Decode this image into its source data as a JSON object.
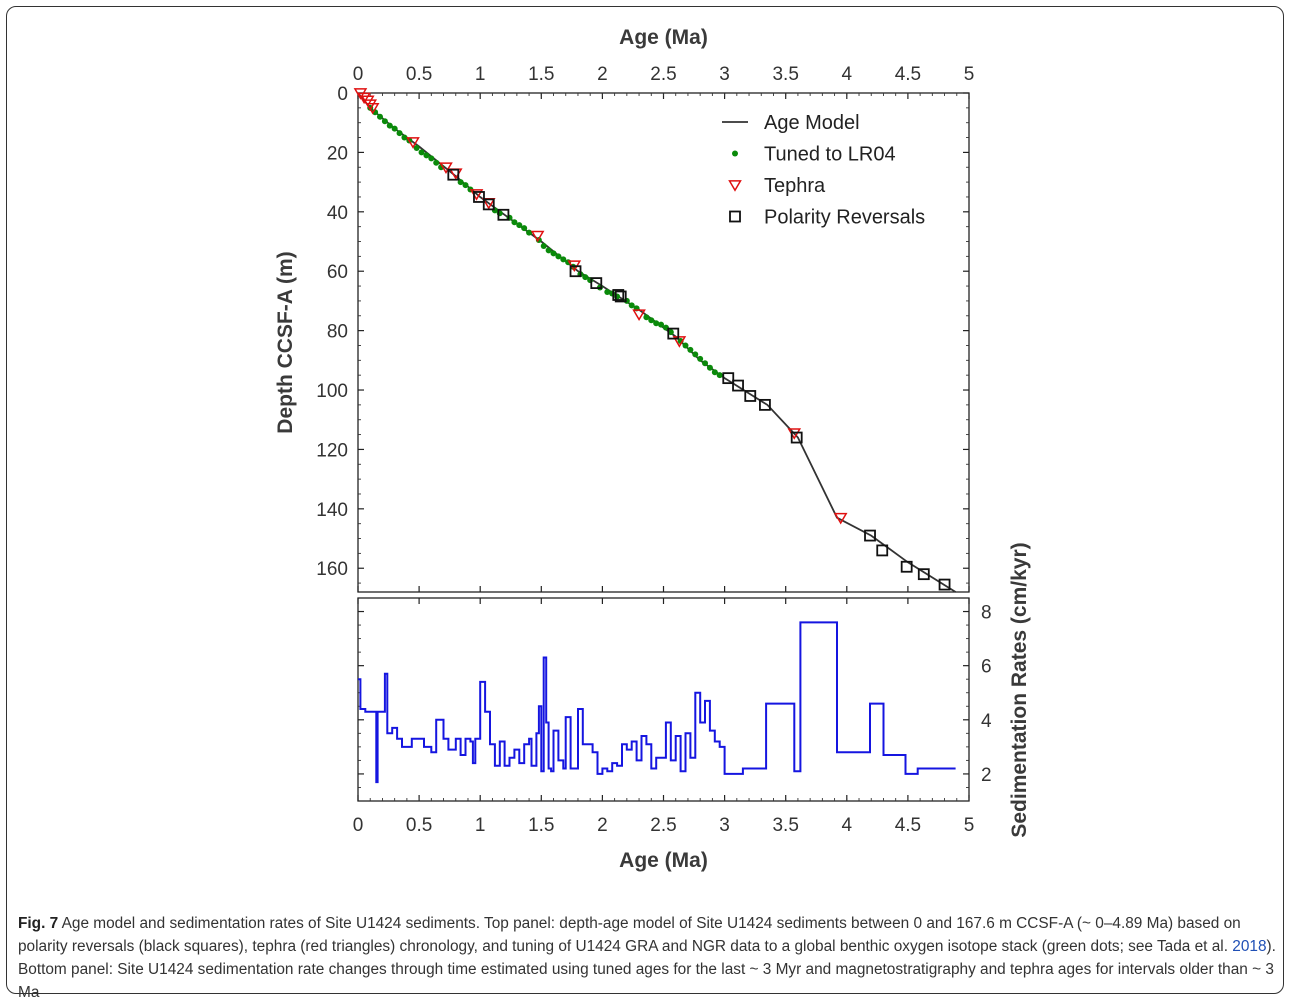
{
  "chart_data": [
    {
      "type": "scatter",
      "panel": "top",
      "xlabel": "Age (Ma)",
      "ylabel": "Depth CCSF-A (m)",
      "xlim": [
        0,
        5
      ],
      "ylim": [
        0,
        168
      ],
      "y_reversed": true,
      "x_axis_position": "top",
      "xticks": [
        "0",
        "0.5",
        "1",
        "1.5",
        "2",
        "2.5",
        "3",
        "3.5",
        "4",
        "4.5",
        "5"
      ],
      "yticks": [
        "0",
        "20",
        "40",
        "60",
        "80",
        "100",
        "120",
        "140",
        "160"
      ],
      "legend_position": "top-right",
      "grid": false,
      "colors": {
        "age_model": "#333333",
        "tuned": "#0a8a0a",
        "tephra": "#e01010",
        "polarity": "#111111"
      },
      "series": [
        {
          "name": "Age Model",
          "kind": "line",
          "x": [
            0,
            0.1,
            0.3,
            0.5,
            0.8,
            1.0,
            1.2,
            1.5,
            1.8,
            2.0,
            2.3,
            2.6,
            2.8,
            3.0,
            3.35,
            3.6,
            3.92,
            4.2,
            4.5,
            4.89
          ],
          "y": [
            0,
            5,
            12,
            18,
            28,
            35,
            41,
            50,
            60,
            65,
            73,
            82,
            90,
            96,
            105,
            116,
            143,
            149,
            158,
            168
          ]
        },
        {
          "name": "Tuned to LR04",
          "kind": "points",
          "x": [
            0.1,
            0.14,
            0.18,
            0.22,
            0.26,
            0.3,
            0.34,
            0.38,
            0.42,
            0.48,
            0.52,
            0.56,
            0.6,
            0.64,
            0.68,
            0.84,
            0.88,
            0.92,
            1.12,
            1.16,
            1.24,
            1.28,
            1.32,
            1.36,
            1.4,
            1.48,
            1.52,
            1.56,
            1.6,
            1.64,
            1.68,
            1.72,
            1.76,
            1.82,
            1.86,
            1.9,
            1.98,
            2.04,
            2.08,
            2.12,
            2.2,
            2.24,
            2.28,
            2.36,
            2.4,
            2.44,
            2.48,
            2.52,
            2.56,
            2.64,
            2.68,
            2.72,
            2.76,
            2.8,
            2.84,
            2.88,
            2.92,
            2.96
          ],
          "y": [
            5,
            6.5,
            8,
            9.5,
            11,
            12,
            13.5,
            15,
            16,
            18.5,
            20,
            21,
            22,
            23.5,
            25,
            30,
            31,
            32.5,
            39.5,
            40.5,
            42,
            43.5,
            44.5,
            45.5,
            47,
            49.5,
            51.5,
            53,
            54,
            55,
            56,
            57,
            58.5,
            61,
            62,
            63,
            65.5,
            67,
            67.5,
            68.5,
            70,
            71.5,
            72.5,
            75.5,
            76.5,
            77.5,
            78,
            79,
            80.5,
            83.5,
            85,
            86.5,
            88,
            89.5,
            91,
            92.5,
            94,
            95
          ]
        },
        {
          "name": "Tephra",
          "kind": "points",
          "x": [
            0.02,
            0.05,
            0.08,
            0.1,
            0.12,
            0.45,
            0.72,
            0.8,
            0.97,
            1.07,
            1.47,
            1.77,
            2.3,
            2.63,
            3.57,
            3.95
          ],
          "y": [
            0,
            1.5,
            2.5,
            3.8,
            5,
            16.5,
            25,
            27,
            34,
            37,
            48,
            58,
            74.5,
            83.5,
            114.5,
            143
          ]
        },
        {
          "name": "Polarity Reversals",
          "kind": "points",
          "x": [
            0.78,
            0.99,
            1.07,
            1.19,
            1.78,
            1.95,
            2.13,
            2.15,
            2.58,
            3.03,
            3.11,
            3.21,
            3.33,
            3.59,
            4.19,
            4.29,
            4.49,
            4.63,
            4.8
          ],
          "y": [
            27.5,
            35,
            37.5,
            41,
            60,
            64,
            68,
            68.5,
            81,
            96,
            98.5,
            102,
            105,
            116,
            149,
            154,
            159.5,
            162,
            165.5
          ]
        }
      ]
    },
    {
      "type": "line",
      "panel": "bottom",
      "step": true,
      "xlabel": "Age (Ma)",
      "ylabel": "Sedimentation Rates (cm/kyr)",
      "xlim": [
        0,
        5
      ],
      "ylim": [
        1,
        8.5
      ],
      "y_axis_position": "right",
      "xticks": [
        "0",
        "0.5",
        "1",
        "1.5",
        "2",
        "2.5",
        "3",
        "3.5",
        "4",
        "4.5",
        "5"
      ],
      "yticks": [
        "2",
        "4",
        "6",
        "8"
      ],
      "grid": false,
      "colors": {
        "rate": "#1515e0"
      },
      "series": [
        {
          "kind": "step",
          "x": [
            0,
            0.02,
            0.06,
            0.14,
            0.15,
            0.16,
            0.22,
            0.24,
            0.28,
            0.32,
            0.36,
            0.44,
            0.54,
            0.6,
            0.64,
            0.7,
            0.74,
            0.8,
            0.84,
            0.88,
            0.92,
            0.94,
            0.96,
            1.0,
            1.04,
            1.08,
            1.12,
            1.16,
            1.2,
            1.24,
            1.28,
            1.32,
            1.36,
            1.4,
            1.42,
            1.46,
            1.48,
            1.5,
            1.52,
            1.54,
            1.56,
            1.58,
            1.6,
            1.64,
            1.68,
            1.7,
            1.74,
            1.78,
            1.8,
            1.84,
            1.88,
            1.92,
            1.96,
            2.0,
            2.04,
            2.08,
            2.12,
            2.16,
            2.2,
            2.24,
            2.28,
            2.32,
            2.36,
            2.4,
            2.44,
            2.48,
            2.52,
            2.56,
            2.6,
            2.64,
            2.68,
            2.72,
            2.76,
            2.8,
            2.84,
            2.88,
            2.92,
            2.96,
            3.0,
            3.03,
            3.15,
            3.34,
            3.57,
            3.62,
            3.92,
            4.19,
            4.3,
            4.48,
            4.58,
            4.89
          ],
          "y": [
            5.5,
            4.4,
            4.3,
            4.3,
            1.7,
            4.3,
            5.7,
            3.5,
            3.7,
            3.3,
            3.0,
            3.3,
            3.0,
            2.8,
            4.0,
            3.3,
            2.9,
            3.3,
            2.7,
            3.3,
            3.2,
            2.4,
            3.3,
            5.4,
            4.3,
            3.1,
            2.3,
            3.2,
            2.3,
            2.6,
            2.9,
            2.4,
            3.1,
            3.3,
            2.3,
            3.5,
            4.5,
            2.1,
            6.3,
            3.9,
            2.2,
            2.1,
            3.6,
            2.5,
            2.2,
            4.1,
            2.2,
            2.2,
            4.4,
            3.1,
            3.1,
            2.8,
            2.0,
            2.2,
            2.1,
            2.4,
            2.3,
            3.1,
            2.9,
            3.2,
            2.5,
            3.4,
            3.1,
            2.2,
            2.6,
            2.6,
            3.9,
            2.5,
            3.4,
            2.1,
            3.5,
            2.6,
            5.0,
            3.9,
            4.7,
            3.6,
            3.2,
            3.0,
            2.0,
            2.0,
            2.2,
            4.6,
            2.1,
            7.6,
            2.8,
            4.6,
            2.7,
            2.0,
            2.2,
            2.2
          ]
        }
      ]
    }
  ],
  "caption": {
    "label": "Fig. 7",
    "text_before_link": "Age model and sedimentation rates of Site U1424 sediments. Top panel: depth-age model of Site U1424 sediments between 0 and 167.6 m CCSF-A (~ 0–4.89 Ma) based on polarity reversals (black squares), tephra (red triangles) chronology, and tuning of U1424 GRA and NGR data to a global benthic oxygen isotope stack (green dots; see Tada et al. ",
    "link_text": "2018",
    "text_after_link": "). Bottom panel: Site U1424 sedimentation rate changes through time estimated using tuned ages for the last ~ 3 Myr and magnetostratigraphy and tephra ages for intervals older than ~ 3 Ma"
  }
}
